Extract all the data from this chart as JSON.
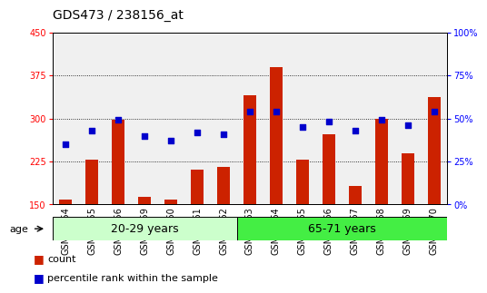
{
  "title": "GDS473 / 238156_at",
  "samples": [
    "GSM10354",
    "GSM10355",
    "GSM10356",
    "GSM10359",
    "GSM10360",
    "GSM10361",
    "GSM10362",
    "GSM10363",
    "GSM10364",
    "GSM10365",
    "GSM10366",
    "GSM10367",
    "GSM10368",
    "GSM10369",
    "GSM10370"
  ],
  "counts": [
    158,
    228,
    298,
    163,
    158,
    210,
    215,
    340,
    390,
    228,
    272,
    183,
    300,
    240,
    338
  ],
  "percentile_ranks": [
    35,
    43,
    49,
    40,
    37,
    42,
    41,
    54,
    54,
    45,
    48,
    43,
    49,
    46,
    54
  ],
  "group1_label": "20-29 years",
  "group1_count": 7,
  "group1_color": "#ccffcc",
  "group2_label": "65-71 years",
  "group2_count": 8,
  "group2_color": "#44ee44",
  "ylim_left": [
    150,
    450
  ],
  "ylim_right": [
    0,
    100
  ],
  "yticks_left": [
    150,
    225,
    300,
    375,
    450
  ],
  "yticks_right": [
    0,
    25,
    50,
    75,
    100
  ],
  "bar_color": "#cc2200",
  "dot_color": "#0000cc",
  "bar_width": 0.5,
  "plot_bg": "#f0f0f0",
  "grid_color": "#000000",
  "title_fontsize": 10,
  "tick_fontsize": 7,
  "label_fontsize": 8,
  "group_label_fontsize": 9,
  "age_label": "age",
  "legend_count": "count",
  "legend_pct": "percentile rank within the sample"
}
